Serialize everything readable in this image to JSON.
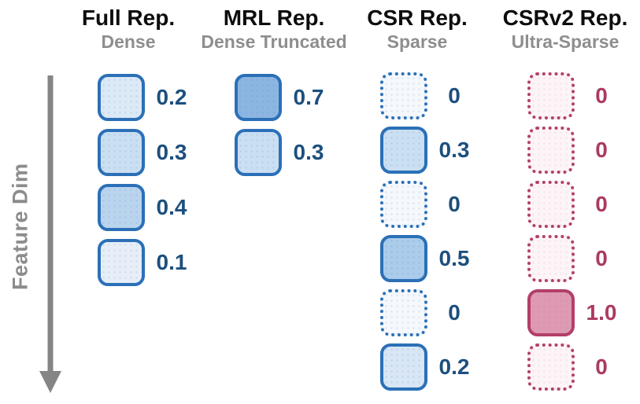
{
  "axis": {
    "label": "Feature Dim"
  },
  "palette": {
    "blue_border": "#2b70b7",
    "blue_value_text": "#1d4f7d",
    "pink_border": "#b23f69",
    "pink_value_text": "#ab3a63",
    "title_color": "#0d0d0d",
    "subtitle_color": "#8e8e8e",
    "axis_color": "#858585"
  },
  "columns": [
    {
      "id": "full",
      "title": "Full Rep.",
      "subtitle": "Dense",
      "theme": "blue",
      "cells": [
        {
          "value": "0.2",
          "filled": true,
          "fill": "#dce9f6"
        },
        {
          "value": "0.3",
          "filled": true,
          "fill": "#cbdff2"
        },
        {
          "value": "0.4",
          "filled": true,
          "fill": "#bad4ee"
        },
        {
          "value": "0.1",
          "filled": true,
          "fill": "#e7eef8"
        }
      ]
    },
    {
      "id": "mrl",
      "title": "MRL Rep.",
      "subtitle": "Dense Truncated",
      "theme": "blue",
      "cells": [
        {
          "value": "0.7",
          "filled": true,
          "fill": "#8cb6e1"
        },
        {
          "value": "0.3",
          "filled": true,
          "fill": "#cbdff2"
        }
      ]
    },
    {
      "id": "csr",
      "title": "CSR Rep.",
      "subtitle": "Sparse",
      "theme": "blue",
      "cells": [
        {
          "value": "0",
          "filled": false,
          "fill": "#f5f8fc"
        },
        {
          "value": "0.3",
          "filled": true,
          "fill": "#cbdff2"
        },
        {
          "value": "0",
          "filled": false,
          "fill": "#f5f8fc"
        },
        {
          "value": "0.5",
          "filled": true,
          "fill": "#abccea"
        },
        {
          "value": "0",
          "filled": false,
          "fill": "#f5f8fc"
        },
        {
          "value": "0.2",
          "filled": true,
          "fill": "#d8e6f5"
        }
      ]
    },
    {
      "id": "csrv2",
      "title": "CSRv2 Rep.",
      "subtitle": "Ultra-Sparse",
      "theme": "pink",
      "cells": [
        {
          "value": "0",
          "filled": false,
          "fill": "#fcf4f7"
        },
        {
          "value": "0",
          "filled": false,
          "fill": "#fcf4f7"
        },
        {
          "value": "0",
          "filled": false,
          "fill": "#fcf4f7"
        },
        {
          "value": "0",
          "filled": false,
          "fill": "#fcf4f7"
        },
        {
          "value": "1.0",
          "filled": true,
          "fill": "#de9ab3"
        },
        {
          "value": "0",
          "filled": false,
          "fill": "#fcf4f7"
        }
      ]
    }
  ]
}
